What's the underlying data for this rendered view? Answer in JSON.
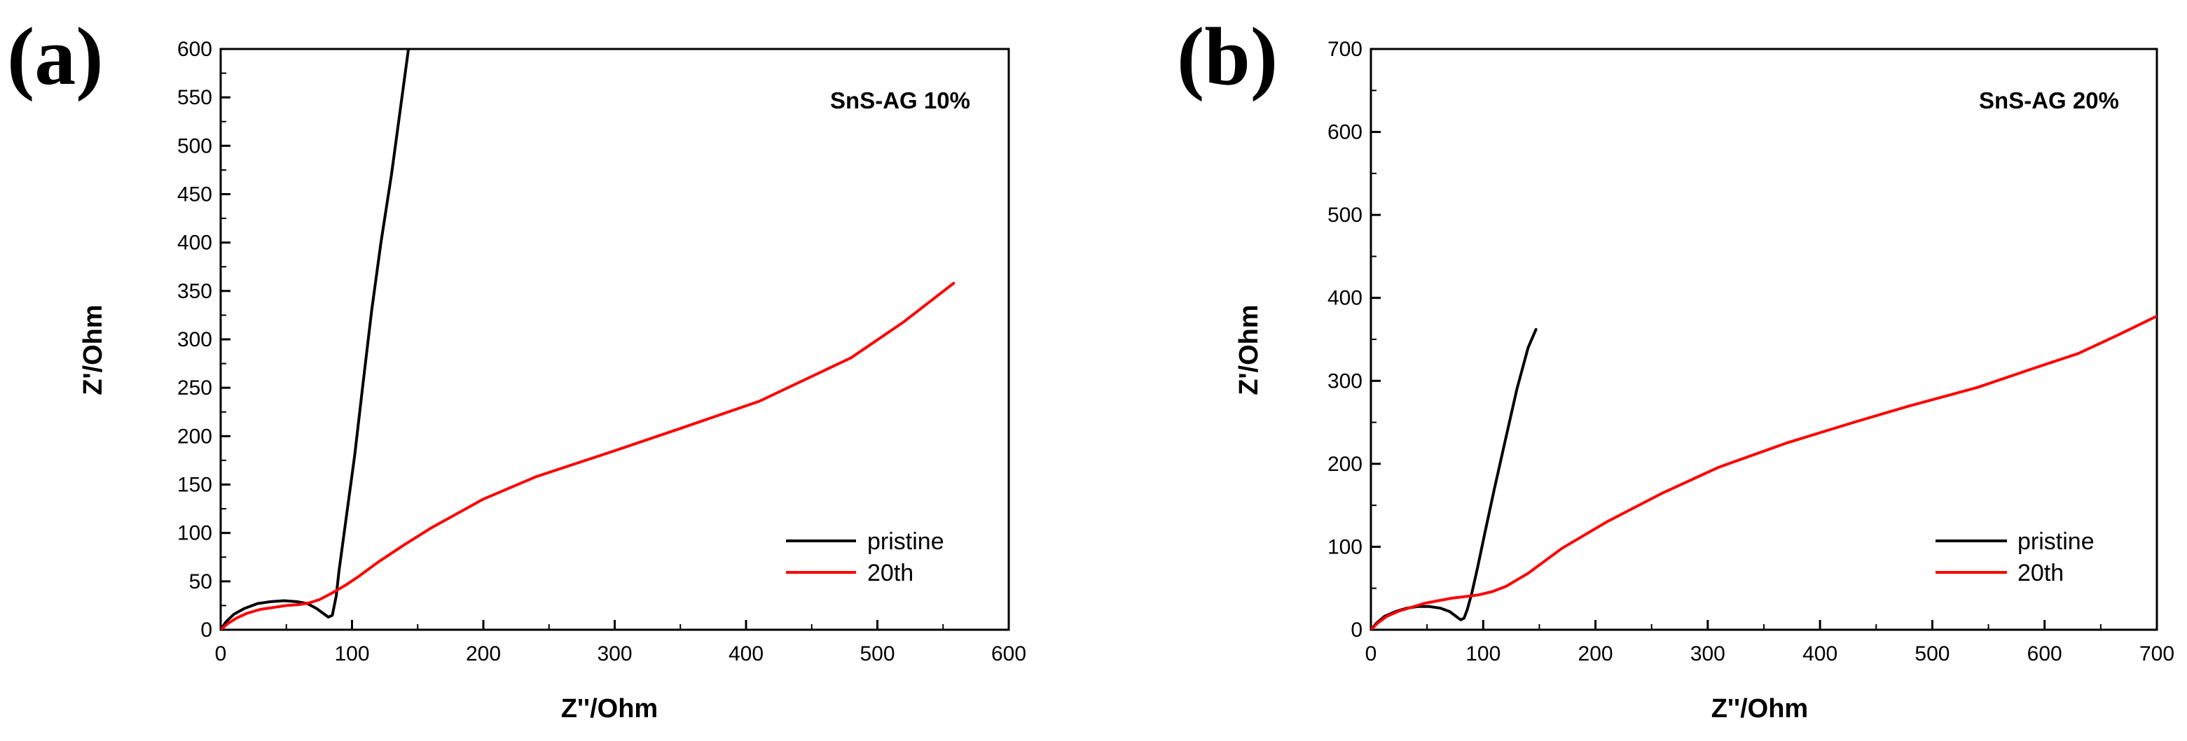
{
  "chart_data": [
    {
      "panel_label": "(a)",
      "type": "line",
      "annotation": "SnS-AG 10%",
      "xlabel": "Z''/Ohm",
      "ylabel": "Z'/Ohm",
      "xlim": [
        0,
        600
      ],
      "ylim": [
        0,
        600
      ],
      "xticks": [
        0,
        100,
        200,
        300,
        400,
        500,
        600
      ],
      "yticks": [
        0,
        50,
        100,
        150,
        200,
        250,
        300,
        350,
        400,
        450,
        500,
        550,
        600
      ],
      "legend": [
        "pristine",
        "20th"
      ],
      "series": [
        {
          "name": "pristine",
          "color": "#000000",
          "x": [
            0,
            4,
            10,
            18,
            28,
            38,
            48,
            58,
            66,
            73,
            78,
            82,
            85,
            88,
            90,
            93,
            97,
            102,
            108,
            115,
            122,
            130,
            137,
            143
          ],
          "y": [
            0,
            8,
            16,
            22,
            27,
            29,
            30,
            29,
            27,
            22,
            17,
            13,
            15,
            35,
            60,
            90,
            130,
            180,
            250,
            330,
            400,
            470,
            540,
            600
          ]
        },
        {
          "name": "20th",
          "color": "#ff0000",
          "x": [
            0,
            5,
            12,
            20,
            30,
            40,
            50,
            60,
            68,
            75,
            85,
            95,
            105,
            120,
            140,
            160,
            200,
            240,
            300,
            350,
            410,
            480,
            520,
            558
          ],
          "y": [
            0,
            6,
            12,
            17,
            21,
            23,
            25,
            26,
            28,
            31,
            38,
            46,
            55,
            70,
            88,
            105,
            135,
            158,
            185,
            208,
            236,
            281,
            318,
            358
          ]
        }
      ]
    },
    {
      "panel_label": "(b)",
      "type": "line",
      "annotation": "SnS-AG 20%",
      "xlabel": "Z''/Ohm",
      "ylabel": "Z'/Ohm",
      "xlim": [
        0,
        700
      ],
      "ylim": [
        0,
        700
      ],
      "xticks": [
        0,
        100,
        200,
        300,
        400,
        500,
        600,
        700
      ],
      "yticks": [
        0,
        100,
        200,
        300,
        400,
        500,
        600,
        700
      ],
      "legend": [
        "pristine",
        "20th"
      ],
      "series": [
        {
          "name": "pristine",
          "color": "#000000",
          "x": [
            0,
            5,
            12,
            22,
            32,
            42,
            52,
            62,
            70,
            76,
            80,
            83,
            86,
            90,
            95,
            102,
            110,
            120,
            130,
            140,
            147
          ],
          "y": [
            0,
            8,
            16,
            22,
            26,
            28,
            28,
            26,
            22,
            16,
            12,
            14,
            25,
            45,
            75,
            120,
            170,
            230,
            290,
            340,
            362
          ]
        },
        {
          "name": "20th",
          "color": "#ff0000",
          "x": [
            0,
            6,
            14,
            24,
            36,
            48,
            60,
            72,
            84,
            96,
            108,
            120,
            140,
            170,
            210,
            260,
            310,
            370,
            430,
            480,
            540,
            590,
            630,
            665,
            700
          ],
          "y": [
            0,
            8,
            16,
            22,
            27,
            32,
            35,
            38,
            40,
            42,
            46,
            52,
            68,
            98,
            130,
            165,
            196,
            225,
            250,
            270,
            292,
            315,
            333,
            355,
            378
          ]
        }
      ]
    }
  ]
}
